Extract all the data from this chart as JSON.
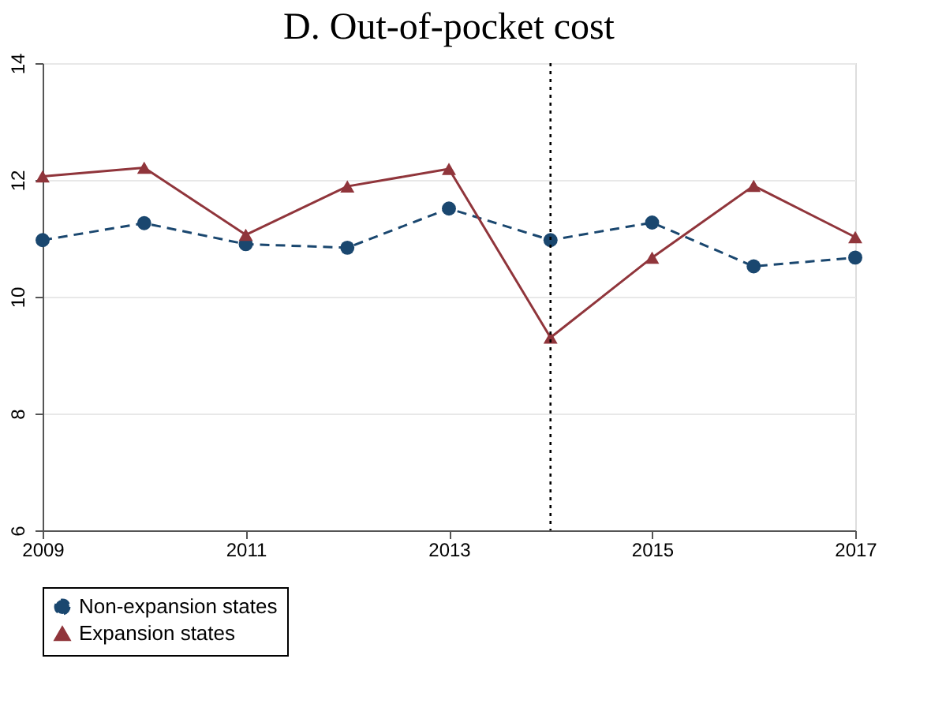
{
  "chart_data": {
    "type": "line",
    "title": "D. Out-of-pocket cost",
    "x": [
      2009,
      2010,
      2011,
      2012,
      2013,
      2014,
      2015,
      2016,
      2017
    ],
    "series": [
      {
        "name": "Non-expansion states",
        "color": "#1a476f",
        "marker": "circle",
        "line_style": "dashed",
        "values": [
          10.97,
          11.26,
          10.9,
          10.84,
          11.51,
          10.97,
          11.27,
          10.52,
          10.67
        ]
      },
      {
        "name": "Expansion states",
        "color": "#90353b",
        "marker": "triangle",
        "line_style": "solid",
        "values": [
          12.06,
          12.21,
          11.06,
          11.89,
          12.19,
          9.3,
          10.67,
          11.9,
          11.02
        ]
      }
    ],
    "xlim": [
      2009,
      2017
    ],
    "xticks": [
      2009,
      2011,
      2013,
      2015,
      2017
    ],
    "ylim": [
      6,
      14
    ],
    "yticks": [
      6,
      8,
      10,
      12,
      14
    ],
    "ref_lines": [
      {
        "axis": "x",
        "value": 2014,
        "color": "#000000",
        "line_style": "dotted"
      }
    ],
    "grid": "y",
    "legend": "bottom"
  }
}
